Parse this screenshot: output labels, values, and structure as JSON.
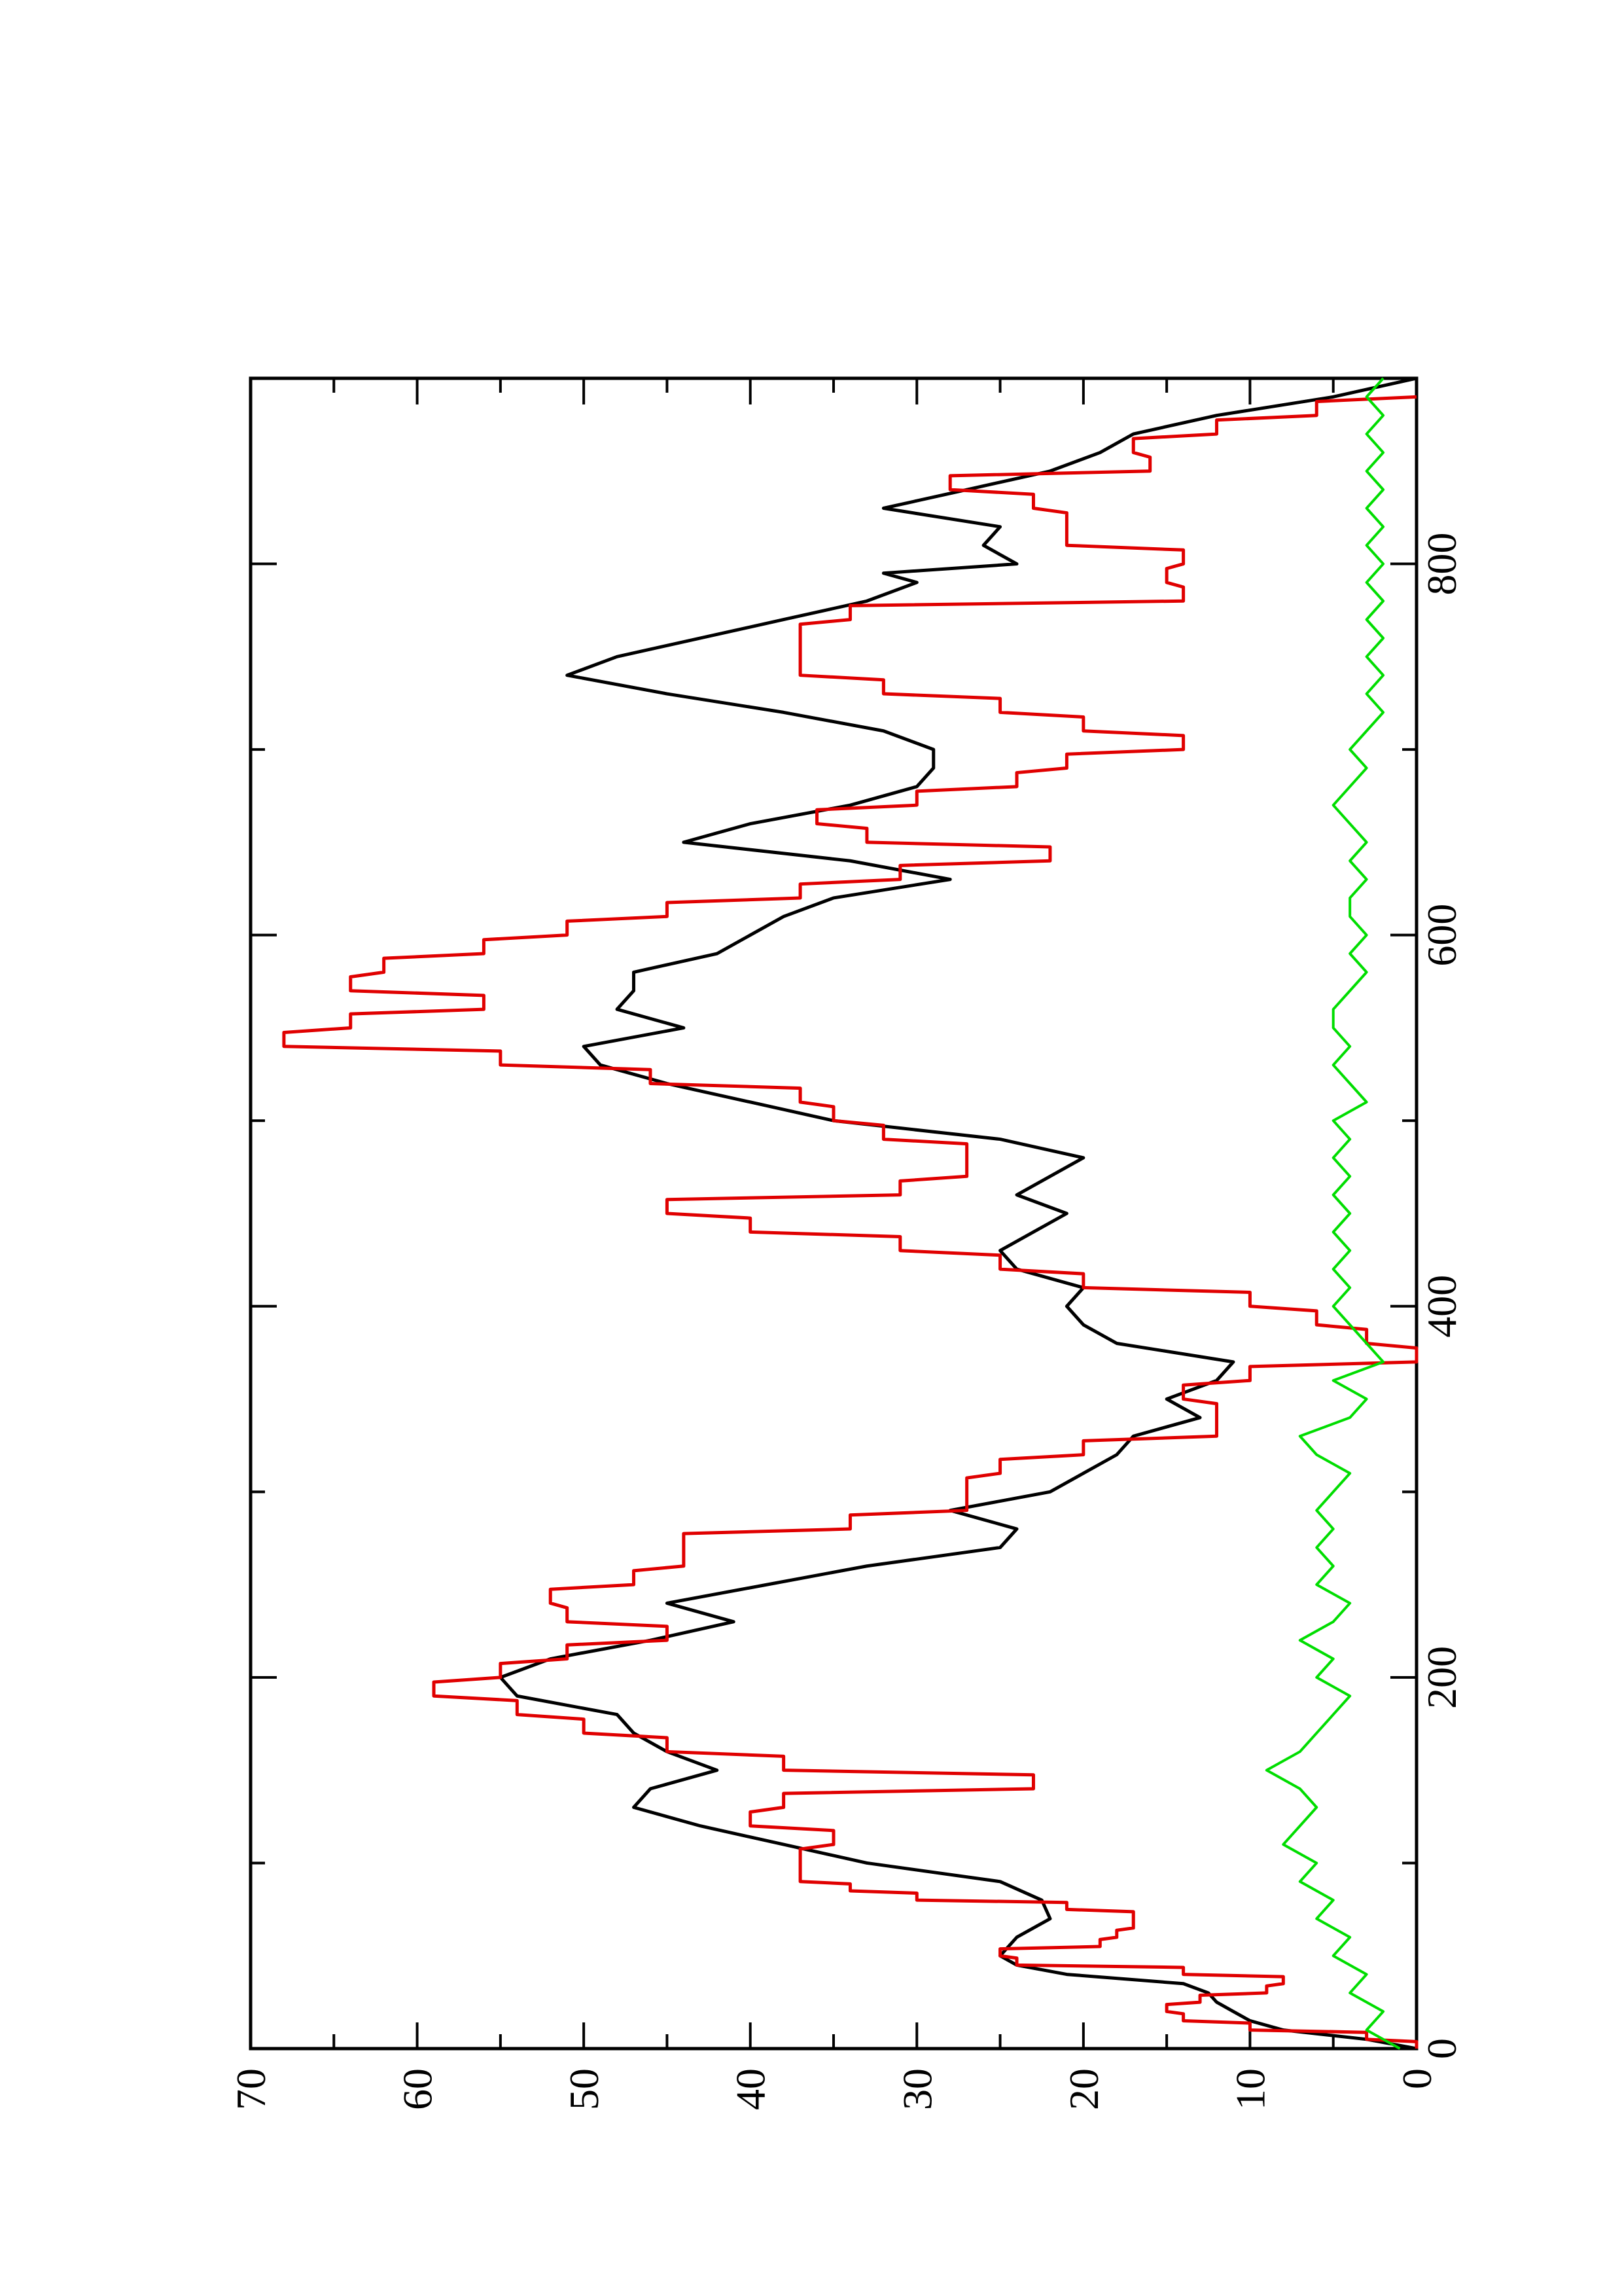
{
  "chart_data": {
    "type": "line",
    "title": "",
    "xlabel": "",
    "ylabel": "",
    "orientation": "rotated-90-ccw",
    "xlim": [
      0,
      900
    ],
    "ylim": [
      0,
      70
    ],
    "x_ticks": [
      0,
      200,
      400,
      600,
      800
    ],
    "x_minor_ticks": [
      100,
      300,
      500,
      700
    ],
    "y_ticks": [
      0,
      10,
      20,
      30,
      40,
      50,
      60,
      70
    ],
    "y_minor_ticks": [
      5,
      15,
      25,
      35,
      45,
      55,
      65
    ],
    "grid": false,
    "legend": "none",
    "series": [
      {
        "color": "#000000",
        "style": "smooth-line",
        "points": [
          [
            0,
            0
          ],
          [
            5,
            3
          ],
          [
            10,
            8
          ],
          [
            15,
            10
          ],
          [
            20,
            11
          ],
          [
            25,
            12
          ],
          [
            30,
            12.5
          ],
          [
            35,
            14
          ],
          [
            40,
            21
          ],
          [
            45,
            24
          ],
          [
            50,
            25
          ],
          [
            60,
            24
          ],
          [
            70,
            22
          ],
          [
            80,
            22.5
          ],
          [
            90,
            25
          ],
          [
            100,
            33
          ],
          [
            110,
            38
          ],
          [
            120,
            43
          ],
          [
            130,
            47
          ],
          [
            140,
            46
          ],
          [
            150,
            42
          ],
          [
            160,
            45
          ],
          [
            170,
            47
          ],
          [
            180,
            48
          ],
          [
            190,
            54
          ],
          [
            200,
            55
          ],
          [
            210,
            52
          ],
          [
            220,
            46
          ],
          [
            230,
            41
          ],
          [
            240,
            45
          ],
          [
            250,
            39
          ],
          [
            260,
            33
          ],
          [
            270,
            25
          ],
          [
            280,
            24
          ],
          [
            290,
            28
          ],
          [
            300,
            22
          ],
          [
            310,
            20
          ],
          [
            320,
            18
          ],
          [
            330,
            17
          ],
          [
            340,
            13
          ],
          [
            350,
            15
          ],
          [
            360,
            12
          ],
          [
            370,
            11
          ],
          [
            380,
            18
          ],
          [
            390,
            20
          ],
          [
            400,
            21
          ],
          [
            410,
            20
          ],
          [
            420,
            24
          ],
          [
            430,
            25
          ],
          [
            440,
            23
          ],
          [
            450,
            21
          ],
          [
            460,
            24
          ],
          [
            470,
            22
          ],
          [
            480,
            20
          ],
          [
            490,
            25
          ],
          [
            500,
            35
          ],
          [
            510,
            40
          ],
          [
            520,
            45
          ],
          [
            530,
            49
          ],
          [
            540,
            50
          ],
          [
            550,
            44
          ],
          [
            560,
            48
          ],
          [
            570,
            47
          ],
          [
            580,
            47
          ],
          [
            590,
            42
          ],
          [
            600,
            40
          ],
          [
            610,
            38
          ],
          [
            620,
            35
          ],
          [
            630,
            28
          ],
          [
            640,
            34
          ],
          [
            650,
            44
          ],
          [
            660,
            40
          ],
          [
            670,
            34
          ],
          [
            680,
            30
          ],
          [
            690,
            29
          ],
          [
            700,
            29
          ],
          [
            710,
            32
          ],
          [
            720,
            38
          ],
          [
            730,
            45
          ],
          [
            740,
            51
          ],
          [
            750,
            48
          ],
          [
            760,
            43
          ],
          [
            770,
            38
          ],
          [
            780,
            33
          ],
          [
            790,
            30
          ],
          [
            795,
            32
          ],
          [
            800,
            24
          ],
          [
            810,
            26
          ],
          [
            820,
            25
          ],
          [
            830,
            32
          ],
          [
            840,
            27
          ],
          [
            850,
            22
          ],
          [
            860,
            19
          ],
          [
            870,
            17
          ],
          [
            880,
            12
          ],
          [
            890,
            5
          ],
          [
            900,
            0
          ]
        ]
      },
      {
        "color": "#e00000",
        "style": "step-line",
        "points": [
          [
            0,
            0
          ],
          [
            5,
            3
          ],
          [
            10,
            10
          ],
          [
            15,
            14
          ],
          [
            20,
            15
          ],
          [
            25,
            13
          ],
          [
            30,
            9
          ],
          [
            35,
            8
          ],
          [
            40,
            14
          ],
          [
            45,
            24
          ],
          [
            50,
            25
          ],
          [
            55,
            19
          ],
          [
            60,
            18
          ],
          [
            65,
            17
          ],
          [
            70,
            17
          ],
          [
            75,
            21
          ],
          [
            80,
            30
          ],
          [
            85,
            34
          ],
          [
            90,
            37
          ],
          [
            100,
            37
          ],
          [
            110,
            35
          ],
          [
            120,
            40
          ],
          [
            130,
            38
          ],
          [
            140,
            23
          ],
          [
            150,
            38
          ],
          [
            160,
            45
          ],
          [
            170,
            50
          ],
          [
            180,
            54
          ],
          [
            190,
            59
          ],
          [
            200,
            55
          ],
          [
            210,
            51
          ],
          [
            220,
            45
          ],
          [
            230,
            51
          ],
          [
            240,
            52
          ],
          [
            250,
            47
          ],
          [
            260,
            44
          ],
          [
            270,
            44
          ],
          [
            280,
            34
          ],
          [
            290,
            27
          ],
          [
            300,
            27
          ],
          [
            310,
            25
          ],
          [
            320,
            20
          ],
          [
            330,
            12
          ],
          [
            340,
            12
          ],
          [
            350,
            14
          ],
          [
            360,
            10
          ],
          [
            370,
            0
          ],
          [
            380,
            3
          ],
          [
            390,
            6
          ],
          [
            400,
            10
          ],
          [
            410,
            20
          ],
          [
            420,
            25
          ],
          [
            430,
            31
          ],
          [
            440,
            40
          ],
          [
            450,
            45
          ],
          [
            460,
            31
          ],
          [
            470,
            27
          ],
          [
            480,
            27
          ],
          [
            490,
            32
          ],
          [
            500,
            35
          ],
          [
            510,
            37
          ],
          [
            520,
            46
          ],
          [
            530,
            55
          ],
          [
            540,
            68
          ],
          [
            550,
            64
          ],
          [
            560,
            56
          ],
          [
            570,
            64
          ],
          [
            580,
            62
          ],
          [
            590,
            56
          ],
          [
            600,
            51
          ],
          [
            610,
            45
          ],
          [
            620,
            37
          ],
          [
            630,
            31
          ],
          [
            640,
            22
          ],
          [
            650,
            33
          ],
          [
            660,
            36
          ],
          [
            670,
            30
          ],
          [
            680,
            24
          ],
          [
            690,
            21
          ],
          [
            700,
            14
          ],
          [
            710,
            20
          ],
          [
            720,
            25
          ],
          [
            730,
            32
          ],
          [
            740,
            37
          ],
          [
            750,
            37
          ],
          [
            760,
            37
          ],
          [
            770,
            34
          ],
          [
            780,
            14
          ],
          [
            790,
            15
          ],
          [
            800,
            14
          ],
          [
            810,
            21
          ],
          [
            820,
            21
          ],
          [
            830,
            23
          ],
          [
            840,
            28
          ],
          [
            850,
            16
          ],
          [
            860,
            17
          ],
          [
            870,
            12
          ],
          [
            880,
            6
          ],
          [
            890,
            0
          ]
        ]
      },
      {
        "color": "#00dd00",
        "style": "noisy-line",
        "points": [
          [
            0,
            1
          ],
          [
            10,
            3
          ],
          [
            20,
            2
          ],
          [
            30,
            4
          ],
          [
            40,
            3
          ],
          [
            50,
            5
          ],
          [
            60,
            4
          ],
          [
            70,
            6
          ],
          [
            80,
            5
          ],
          [
            90,
            7
          ],
          [
            100,
            6
          ],
          [
            110,
            8
          ],
          [
            120,
            7
          ],
          [
            130,
            6
          ],
          [
            140,
            7
          ],
          [
            150,
            9
          ],
          [
            160,
            7
          ],
          [
            170,
            6
          ],
          [
            180,
            5
          ],
          [
            190,
            4
          ],
          [
            200,
            6
          ],
          [
            210,
            5
          ],
          [
            220,
            7
          ],
          [
            230,
            5
          ],
          [
            240,
            4
          ],
          [
            250,
            6
          ],
          [
            260,
            5
          ],
          [
            270,
            6
          ],
          [
            280,
            5
          ],
          [
            290,
            6
          ],
          [
            300,
            5
          ],
          [
            310,
            4
          ],
          [
            320,
            6
          ],
          [
            330,
            7
          ],
          [
            340,
            4
          ],
          [
            350,
            3
          ],
          [
            360,
            5
          ],
          [
            370,
            2
          ],
          [
            380,
            3
          ],
          [
            390,
            4
          ],
          [
            400,
            5
          ],
          [
            410,
            4
          ],
          [
            420,
            5
          ],
          [
            430,
            4
          ],
          [
            440,
            5
          ],
          [
            450,
            4
          ],
          [
            460,
            5
          ],
          [
            470,
            4
          ],
          [
            480,
            5
          ],
          [
            490,
            4
          ],
          [
            500,
            5
          ],
          [
            510,
            3
          ],
          [
            520,
            4
          ],
          [
            530,
            5
          ],
          [
            540,
            4
          ],
          [
            550,
            5
          ],
          [
            560,
            5
          ],
          [
            570,
            4
          ],
          [
            580,
            3
          ],
          [
            590,
            4
          ],
          [
            600,
            3
          ],
          [
            610,
            4
          ],
          [
            620,
            4
          ],
          [
            630,
            3
          ],
          [
            640,
            4
          ],
          [
            650,
            3
          ],
          [
            660,
            4
          ],
          [
            670,
            5
          ],
          [
            680,
            4
          ],
          [
            690,
            3
          ],
          [
            700,
            4
          ],
          [
            710,
            3
          ],
          [
            720,
            2
          ],
          [
            730,
            3
          ],
          [
            740,
            2
          ],
          [
            750,
            3
          ],
          [
            760,
            2
          ],
          [
            770,
            3
          ],
          [
            780,
            2
          ],
          [
            790,
            3
          ],
          [
            800,
            2
          ],
          [
            810,
            3
          ],
          [
            820,
            2
          ],
          [
            830,
            3
          ],
          [
            840,
            2
          ],
          [
            850,
            3
          ],
          [
            860,
            2
          ],
          [
            870,
            3
          ],
          [
            880,
            2
          ],
          [
            890,
            3
          ],
          [
            900,
            2
          ]
        ]
      }
    ]
  }
}
